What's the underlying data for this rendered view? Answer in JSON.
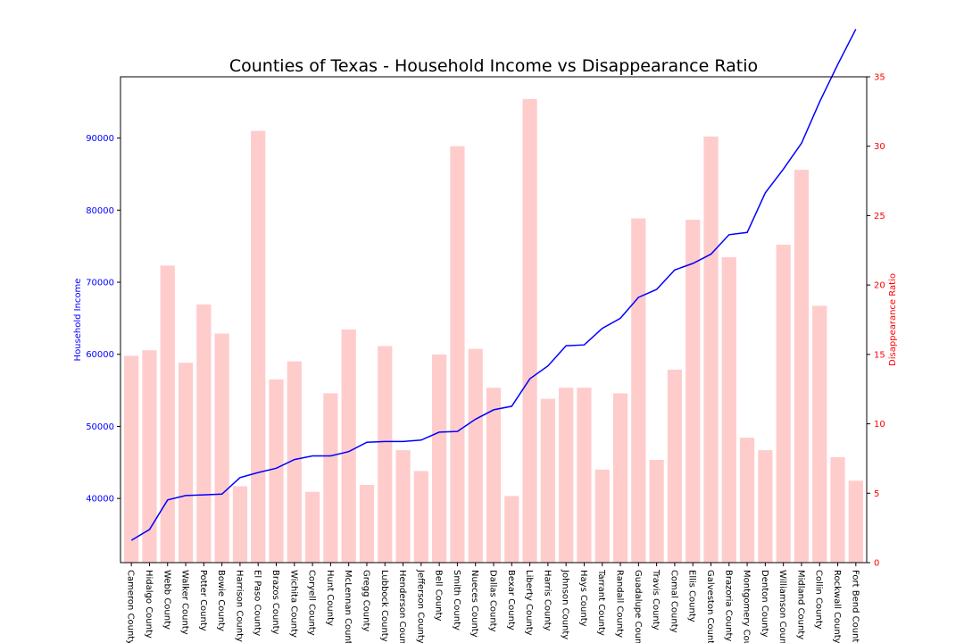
{
  "chart_data": {
    "type": "bar",
    "title": "Counties of Texas - Household Income vs Disappearance Ratio",
    "categories": [
      "Cameron County",
      "Hidalgo County",
      "Webb County",
      "Walker County",
      "Potter County",
      "Bowie County",
      "Harrison County",
      "El Paso County",
      "Brazos County",
      "Wichita County",
      "Coryell County",
      "Hunt County",
      "McLennan County",
      "Gregg County",
      "Lubbock County",
      "Henderson County",
      "Jefferson County",
      "Bell County",
      "Smith County",
      "Nueces County",
      "Dallas County",
      "Bexar County",
      "Liberty County",
      "Harris County",
      "Johnson County",
      "Hays County",
      "Tarrant County",
      "Randall County",
      "Guadalupe County",
      "Travis County",
      "Comal County",
      "Ellis County",
      "Galveston County",
      "Brazoria County",
      "Montgomery County",
      "Denton County",
      "Williamson County",
      "Midland County",
      "Collin County",
      "Rockwall County",
      "Fort Bend County"
    ],
    "series": [
      {
        "name": "Household Income",
        "axis": "left",
        "type": "line",
        "color": "#0000ff",
        "values": [
          34200,
          35700,
          39800,
          40400,
          40500,
          40600,
          42900,
          43600,
          44200,
          45400,
          45900,
          45900,
          46500,
          47800,
          47900,
          47900,
          48100,
          49200,
          49300,
          51000,
          52300,
          52800,
          56600,
          58400,
          61200,
          61300,
          63600,
          65000,
          67900,
          69000,
          71700,
          72600,
          73900,
          76600,
          76900,
          82400,
          85700,
          89300,
          95000,
          100200,
          105100
        ]
      },
      {
        "name": "Disappearance Ratio",
        "axis": "right",
        "type": "bar",
        "color": "#ffcccc",
        "values": [
          14.9,
          15.3,
          21.4,
          14.4,
          18.6,
          16.5,
          5.5,
          31.1,
          13.2,
          14.5,
          5.1,
          12.2,
          16.8,
          5.6,
          15.6,
          8.1,
          6.6,
          15.0,
          30.0,
          15.4,
          12.6,
          4.8,
          33.4,
          11.8,
          12.6,
          12.6,
          6.7,
          12.2,
          24.8,
          7.4,
          13.9,
          24.7,
          30.7,
          22.0,
          9.0,
          8.1,
          22.9,
          28.3,
          18.5,
          7.6,
          5.9
        ]
      }
    ],
    "ylabel": "Household Income",
    "y2label": "Disappearance Ratio",
    "ylim": [
      31100,
      98500
    ],
    "y2lim": [
      0,
      35
    ],
    "yticks": [
      "40000",
      "50000",
      "60000",
      "70000",
      "80000",
      "90000"
    ],
    "y2ticks": [
      "0",
      "5",
      "10",
      "15",
      "20",
      "25",
      "30",
      "35"
    ],
    "grid": false,
    "colors": {
      "left_axis": "#0000ff",
      "right_axis": "#ff0000",
      "bars": "#ffcccc",
      "line": "#0000ff"
    }
  }
}
